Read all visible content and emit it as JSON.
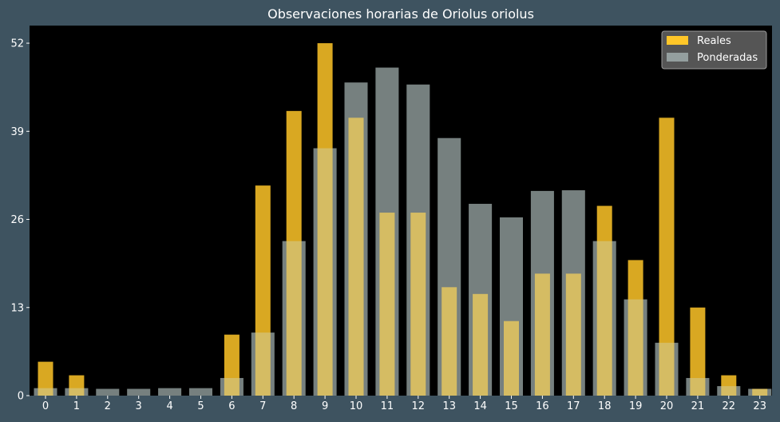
{
  "chart_data": {
    "type": "bar",
    "title": "Observaciones horarias de Oriolus oriolus",
    "xlabel": "",
    "ylabel": "",
    "categories": [
      "0",
      "1",
      "2",
      "3",
      "4",
      "5",
      "6",
      "7",
      "8",
      "9",
      "10",
      "11",
      "12",
      "13",
      "14",
      "15",
      "16",
      "17",
      "18",
      "19",
      "20",
      "21",
      "22",
      "23"
    ],
    "yticks": [
      0,
      13,
      26,
      39,
      52
    ],
    "ylim": [
      0,
      54.6
    ],
    "grid": false,
    "legend_position": "top-right",
    "series": [
      {
        "name": "Reales",
        "color": "#ffc628",
        "values": [
          5,
          3,
          0,
          0,
          0,
          0,
          9,
          31,
          42,
          52,
          41,
          27,
          27,
          16,
          15,
          11,
          18,
          18,
          28,
          20,
          41,
          13,
          3,
          1
        ]
      },
      {
        "name": "Ponderadas",
        "color": "#b7c8c7",
        "values": [
          1.1,
          1.1,
          1,
          1,
          1.1,
          1.1,
          2.6,
          9.3,
          22.8,
          36.5,
          46.2,
          48.4,
          45.9,
          38,
          28.3,
          26.3,
          30.2,
          30.3,
          22.8,
          14.2,
          7.8,
          2.6,
          1.4,
          1
        ]
      }
    ]
  }
}
